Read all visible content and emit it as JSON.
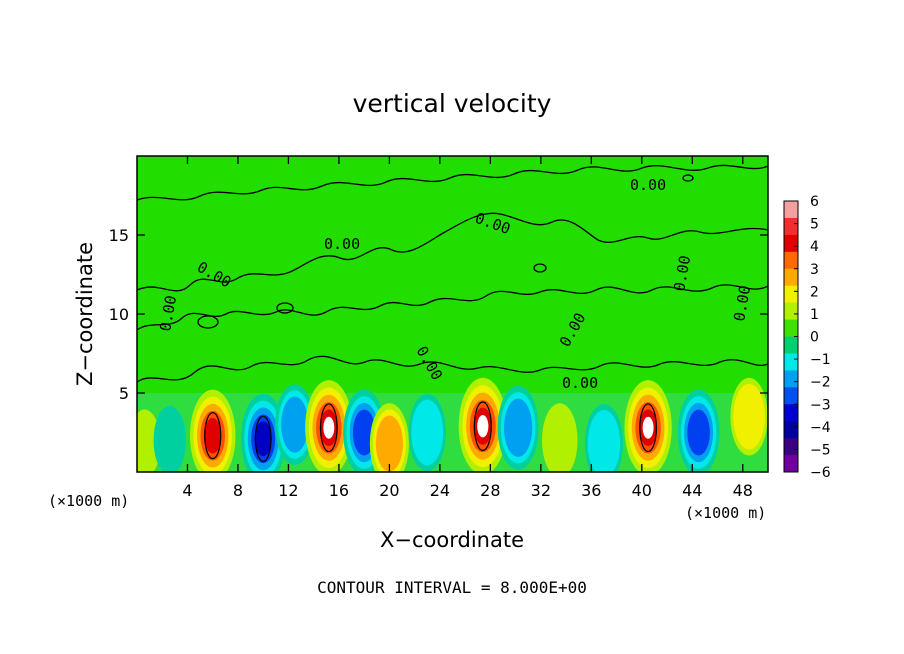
{
  "chart_data": {
    "type": "heatmap",
    "title": "vertical velocity",
    "xlabel": "X−coordinate",
    "ylabel": "Z−coordinate",
    "x_unit_left": "(×1000 m)",
    "x_unit_right": "(×1000 m)",
    "footer": "CONTOUR INTERVAL = 8.000E+00",
    "xlim": [
      0,
      50
    ],
    "ylim": [
      0,
      20
    ],
    "x_ticks": [
      4,
      8,
      12,
      16,
      20,
      24,
      28,
      32,
      36,
      40,
      44,
      48
    ],
    "y_ticks": [
      5,
      10,
      15
    ],
    "colorbar": {
      "ticks": [
        "6",
        "5",
        "4",
        "3",
        "2",
        "1",
        "0",
        "−1",
        "−2",
        "−3",
        "−4",
        "−5",
        "−6"
      ],
      "colors": [
        "#f4a0a0",
        "#f03030",
        "#e00000",
        "#ff6a00",
        "#ffaa00",
        "#f0f000",
        "#b0f000",
        "#40e000",
        "#00d070",
        "#00e8e8",
        "#00a0f0",
        "#0050f0",
        "#0000d0",
        "#0000a0",
        "#3a0080",
        "#7000a0"
      ]
    },
    "contour_label": "0.00",
    "contour_labels_text": [
      "0.00",
      "0.00",
      "0.00",
      "0.00",
      "0.00",
      "0.00",
      "0.00",
      "0.00",
      "0.00",
      "0.00"
    ],
    "background_color": "#22dd00",
    "cells": [
      {
        "x": 0.6,
        "z": 1.8,
        "w": 0.03,
        "sign": 1
      },
      {
        "x": 2.6,
        "z": 2.0,
        "w": -0.3,
        "sign": -1
      },
      {
        "x": 6.0,
        "z": 2.3,
        "w": 7.5,
        "sign": 1
      },
      {
        "x": 10.0,
        "z": 2.1,
        "w": -7.0,
        "sign": -1
      },
      {
        "x": 12.5,
        "z": 3.0,
        "w": -4.0,
        "sign": -1
      },
      {
        "x": 15.2,
        "z": 2.8,
        "w": 8.5,
        "sign": 1
      },
      {
        "x": 18.0,
        "z": 2.5,
        "w": -5.5,
        "sign": -1
      },
      {
        "x": 20.0,
        "z": 1.8,
        "w": 4.0,
        "sign": 1
      },
      {
        "x": 23.0,
        "z": 2.5,
        "w": -3.0,
        "sign": -1
      },
      {
        "x": 27.4,
        "z": 2.9,
        "w": 9.0,
        "sign": 1
      },
      {
        "x": 30.2,
        "z": 2.8,
        "w": -5.0,
        "sign": -1
      },
      {
        "x": 33.5,
        "z": 2.0,
        "w": 2.0,
        "sign": 1
      },
      {
        "x": 37.0,
        "z": 1.8,
        "w": -3.5,
        "sign": -1
      },
      {
        "x": 40.5,
        "z": 2.8,
        "w": 8.5,
        "sign": 1
      },
      {
        "x": 44.5,
        "z": 2.5,
        "w": -5.5,
        "sign": -1
      },
      {
        "x": 48.5,
        "z": 3.5,
        "w": 3.0,
        "sign": 1
      }
    ]
  }
}
